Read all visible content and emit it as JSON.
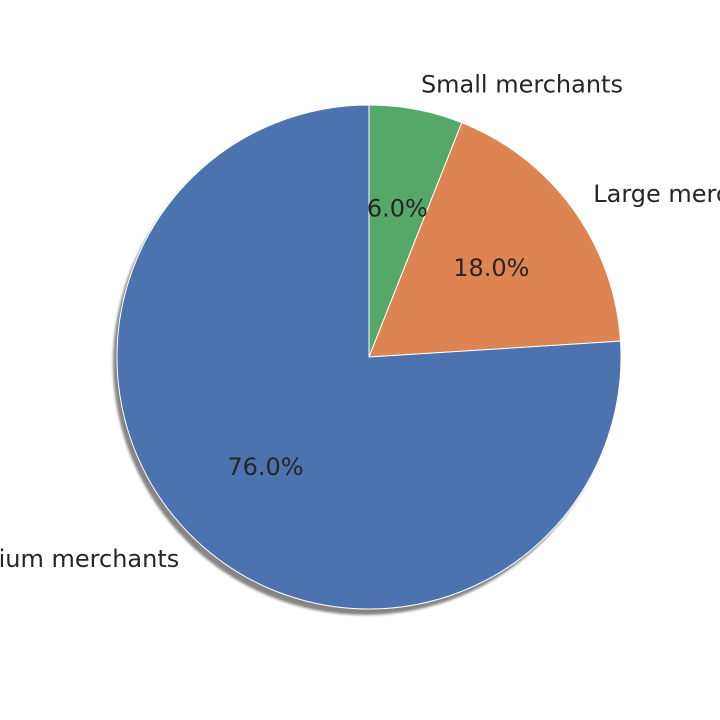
{
  "chart_data": {
    "type": "pie",
    "categories": [
      "Small merchants",
      "Large merchants",
      "Medium merchants"
    ],
    "values": [
      6.0,
      18.0,
      76.0
    ],
    "percent_labels": [
      "6.0%",
      "18.0%",
      "76.0%"
    ],
    "colors": [
      "#55a868",
      "#dd8452",
      "#4c72b0"
    ],
    "start_angle_deg": 90,
    "direction": "clockwise",
    "shadow": true,
    "edge_color": "#ffffff"
  }
}
